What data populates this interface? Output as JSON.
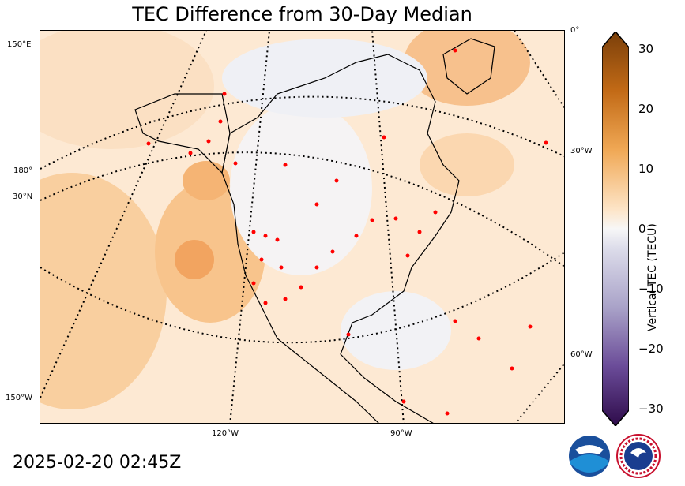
{
  "title": "TEC Difference from 30-Day Median",
  "timestamp": "2025-02-20 02:45Z",
  "colorbar": {
    "label": "Vertical TEC (TECU)",
    "ticks": [
      "30",
      "20",
      "10",
      "0",
      "−10",
      "−20",
      "−30"
    ]
  },
  "graticule_labels": {
    "left": [
      "150°E",
      "180°",
      "30°N",
      "150°W"
    ],
    "right": [
      "0°",
      "30°W",
      "60°W"
    ],
    "bottom": [
      "120°W",
      "90°W"
    ]
  },
  "colors": {
    "positive": "#e8892c",
    "negative": "#5a3a86",
    "neutral": "#f7f7f7",
    "stations": "#ff0000"
  },
  "logos": [
    "noaa-logo",
    "national-weather-service-logo"
  ]
}
